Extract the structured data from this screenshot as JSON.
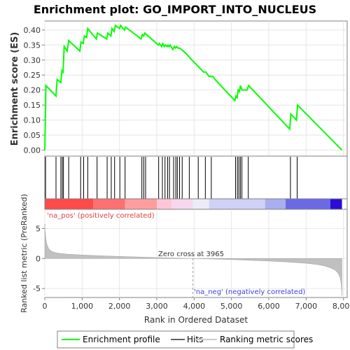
{
  "chart_data": {
    "type": "line",
    "title": "Enrichment plot: GO_IMPORT_INTO_NUCLEUS",
    "es_panel": {
      "ylabel": "Enrichment score (ES)",
      "ylim": [
        -0.02,
        0.43
      ],
      "yticks": [
        "0.00",
        "0.05",
        "0.10",
        "0.15",
        "0.20",
        "0.25",
        "0.30",
        "0.35",
        "0.40"
      ],
      "ytick_values": [
        0.0,
        0.05,
        0.1,
        0.15,
        0.2,
        0.25,
        0.3,
        0.35,
        0.4
      ],
      "grid": true,
      "series": {
        "name": "Enrichment profile",
        "color": "#00ff00",
        "x": [
          0,
          30,
          300,
          330,
          430,
          460,
          490,
          520,
          600,
          640,
          940,
          970,
          1030,
          1060,
          1120,
          1150,
          1380,
          1410,
          1660,
          1690,
          1770,
          1800,
          1860,
          1890,
          2000,
          2030,
          2130,
          2160,
          2580,
          2610,
          2650,
          2680,
          2720,
          3040,
          3070,
          3130,
          3160,
          3200,
          3230,
          3280,
          3300,
          3330,
          3360,
          3430,
          3470,
          3500,
          3530,
          3560,
          3600,
          3660,
          3800,
          3900,
          4100,
          4250,
          4310,
          4400,
          4500,
          4600,
          5090,
          5120,
          5150,
          5180,
          5210,
          5240,
          5280,
          5420,
          5460,
          6560,
          6590,
          6740,
          6770,
          7960
        ],
        "y": [
          0.0,
          0.215,
          0.18,
          0.235,
          0.225,
          0.265,
          0.26,
          0.345,
          0.33,
          0.365,
          0.33,
          0.36,
          0.355,
          0.38,
          0.375,
          0.405,
          0.37,
          0.39,
          0.37,
          0.39,
          0.38,
          0.405,
          0.395,
          0.415,
          0.405,
          0.415,
          0.4,
          0.41,
          0.37,
          0.385,
          0.38,
          0.39,
          0.385,
          0.35,
          0.355,
          0.345,
          0.355,
          0.345,
          0.35,
          0.345,
          0.35,
          0.345,
          0.35,
          0.335,
          0.345,
          0.34,
          0.345,
          0.34,
          0.34,
          0.335,
          0.32,
          0.305,
          0.28,
          0.26,
          0.26,
          0.245,
          0.245,
          0.23,
          0.165,
          0.18,
          0.175,
          0.2,
          0.195,
          0.215,
          0.2,
          0.2,
          0.215,
          0.07,
          0.12,
          0.1,
          0.15,
          0.0
        ]
      }
    },
    "hits_panel": {
      "legend_name": "Hits",
      "positions": [
        20,
        300,
        430,
        470,
        500,
        640,
        960,
        1040,
        1150,
        1400,
        1670,
        1780,
        1870,
        2010,
        2150,
        2600,
        2650,
        2700,
        3050,
        3150,
        3220,
        3290,
        3340,
        3450,
        3510,
        3550,
        3610,
        3680,
        3870,
        4110,
        4300,
        4460,
        5110,
        5160,
        5200,
        5240,
        5280,
        5450,
        6580,
        6760
      ]
    },
    "metric_panel": {
      "ylabel": "Ranked list metric (PreRanked)",
      "ylim": [
        -6.5,
        8.2
      ],
      "yticks": [
        "-5",
        "0",
        "5"
      ],
      "ytick_values": [
        -5,
        0,
        5
      ],
      "legend_name": "Ranking metric scores",
      "zero_cross_label": "Zero cross at 3965",
      "zero_cross": 3965,
      "pos_label": "'na_pos' (positively correlated)",
      "neg_label": "'na_neg' (negatively correlated)",
      "curve_x": [
        0,
        10,
        30,
        60,
        100,
        150,
        200,
        300,
        400,
        600,
        1000,
        1500,
        2000,
        2500,
        3000,
        3500,
        3965,
        4500,
        5000,
        5500,
        6000,
        6500,
        7000,
        7300,
        7500,
        7650,
        7750,
        7820,
        7870,
        7910,
        7940,
        7960
      ],
      "curve_y": [
        5.8,
        4.5,
        3.2,
        2.3,
        1.7,
        1.35,
        1.15,
        0.95,
        0.85,
        0.72,
        0.58,
        0.45,
        0.35,
        0.25,
        0.16,
        0.07,
        0.0,
        -0.08,
        -0.18,
        -0.3,
        -0.42,
        -0.58,
        -0.8,
        -1.0,
        -1.25,
        -1.55,
        -1.85,
        -2.2,
        -2.6,
        -3.2,
        -4.3,
        -6.2
      ]
    },
    "xlabel": "Rank in Ordered Dataset",
    "xlim": [
      0,
      8100
    ],
    "xticks": [
      "0",
      "1,000",
      "2,000",
      "3,000",
      "4,000",
      "5,000",
      "6,000",
      "7,000",
      "8,000"
    ],
    "xtick_values": [
      0,
      1000,
      2000,
      3000,
      4000,
      5000,
      6000,
      7000,
      8000
    ],
    "heat_bar": [
      {
        "from": 0,
        "to": 1300,
        "color": "#ff4a4a"
      },
      {
        "from": 1300,
        "to": 2150,
        "color": "#ff7070"
      },
      {
        "from": 2150,
        "to": 3000,
        "color": "#ff9d9d"
      },
      {
        "from": 3000,
        "to": 3400,
        "color": "#ffc6d8"
      },
      {
        "from": 3400,
        "to": 3965,
        "color": "#f6d8ee"
      },
      {
        "from": 3965,
        "to": 4400,
        "color": "#ecebf6"
      },
      {
        "from": 4400,
        "to": 5900,
        "color": "#cfd2f6"
      },
      {
        "from": 5900,
        "to": 6450,
        "color": "#a9aef0"
      },
      {
        "from": 6450,
        "to": 7650,
        "color": "#6b6ae6"
      },
      {
        "from": 7650,
        "to": 7960,
        "color": "#2a0bd8"
      }
    ],
    "legend": [
      {
        "label": "Enrichment profile",
        "color": "#00ff00"
      },
      {
        "label": "Hits",
        "color": "#606060"
      },
      {
        "label": "Ranking metric scores",
        "color": "#cccccc"
      }
    ]
  }
}
